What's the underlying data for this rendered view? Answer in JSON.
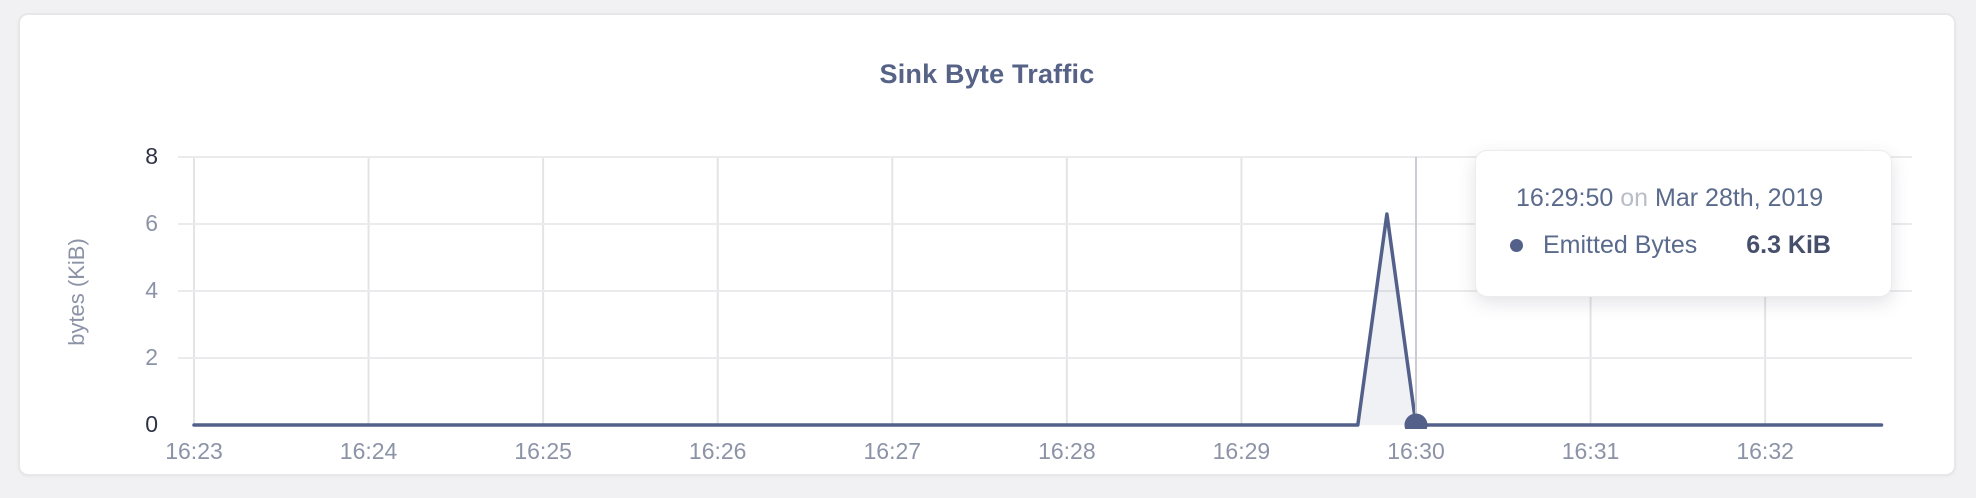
{
  "panel": {
    "title": "Sink Byte Traffic"
  },
  "tooltip": {
    "time": "16:29:50",
    "conjunction": "on",
    "date": "Mar 28th, 2019",
    "series": "Emitted Bytes",
    "value": "6.3 KiB"
  },
  "chart_data": {
    "type": "area",
    "title": "Sink Byte Traffic",
    "xlabel": "",
    "ylabel": "bytes (KiB)",
    "ylim": [
      0,
      8
    ],
    "y_ticks": [
      8,
      6,
      4,
      2,
      0
    ],
    "x_ticks": [
      "16:23",
      "16:24",
      "16:25",
      "16:26",
      "16:27",
      "16:28",
      "16:29",
      "16:30",
      "16:31",
      "16:32"
    ],
    "grid": true,
    "legend_position": "tooltip",
    "series": [
      {
        "name": "Emitted Bytes",
        "color": "#53608a",
        "unit": "KiB",
        "points_sec_kib": [
          [
            0,
            0
          ],
          [
            400,
            0
          ],
          [
            410,
            6.3
          ],
          [
            420,
            0
          ],
          [
            580,
            0
          ]
        ],
        "note": "seconds offset from 16:23:00; value 0 everywhere except spike of 6.3 KiB at 16:29:50"
      }
    ],
    "hover": {
      "time": "16:29:50",
      "date": "Mar 28th, 2019",
      "value_kib": 6.3,
      "crosshair_sec": 420,
      "dot_value_kib": 0
    },
    "style": {
      "grid_v": "#e4e4e7",
      "grid_h": "#ebebed",
      "crosshair": "#cbccd1",
      "fill": "rgba(83,96,138,0.09)",
      "tick_gray": "#8c93a6",
      "tick_dark": "#2e3247"
    }
  }
}
